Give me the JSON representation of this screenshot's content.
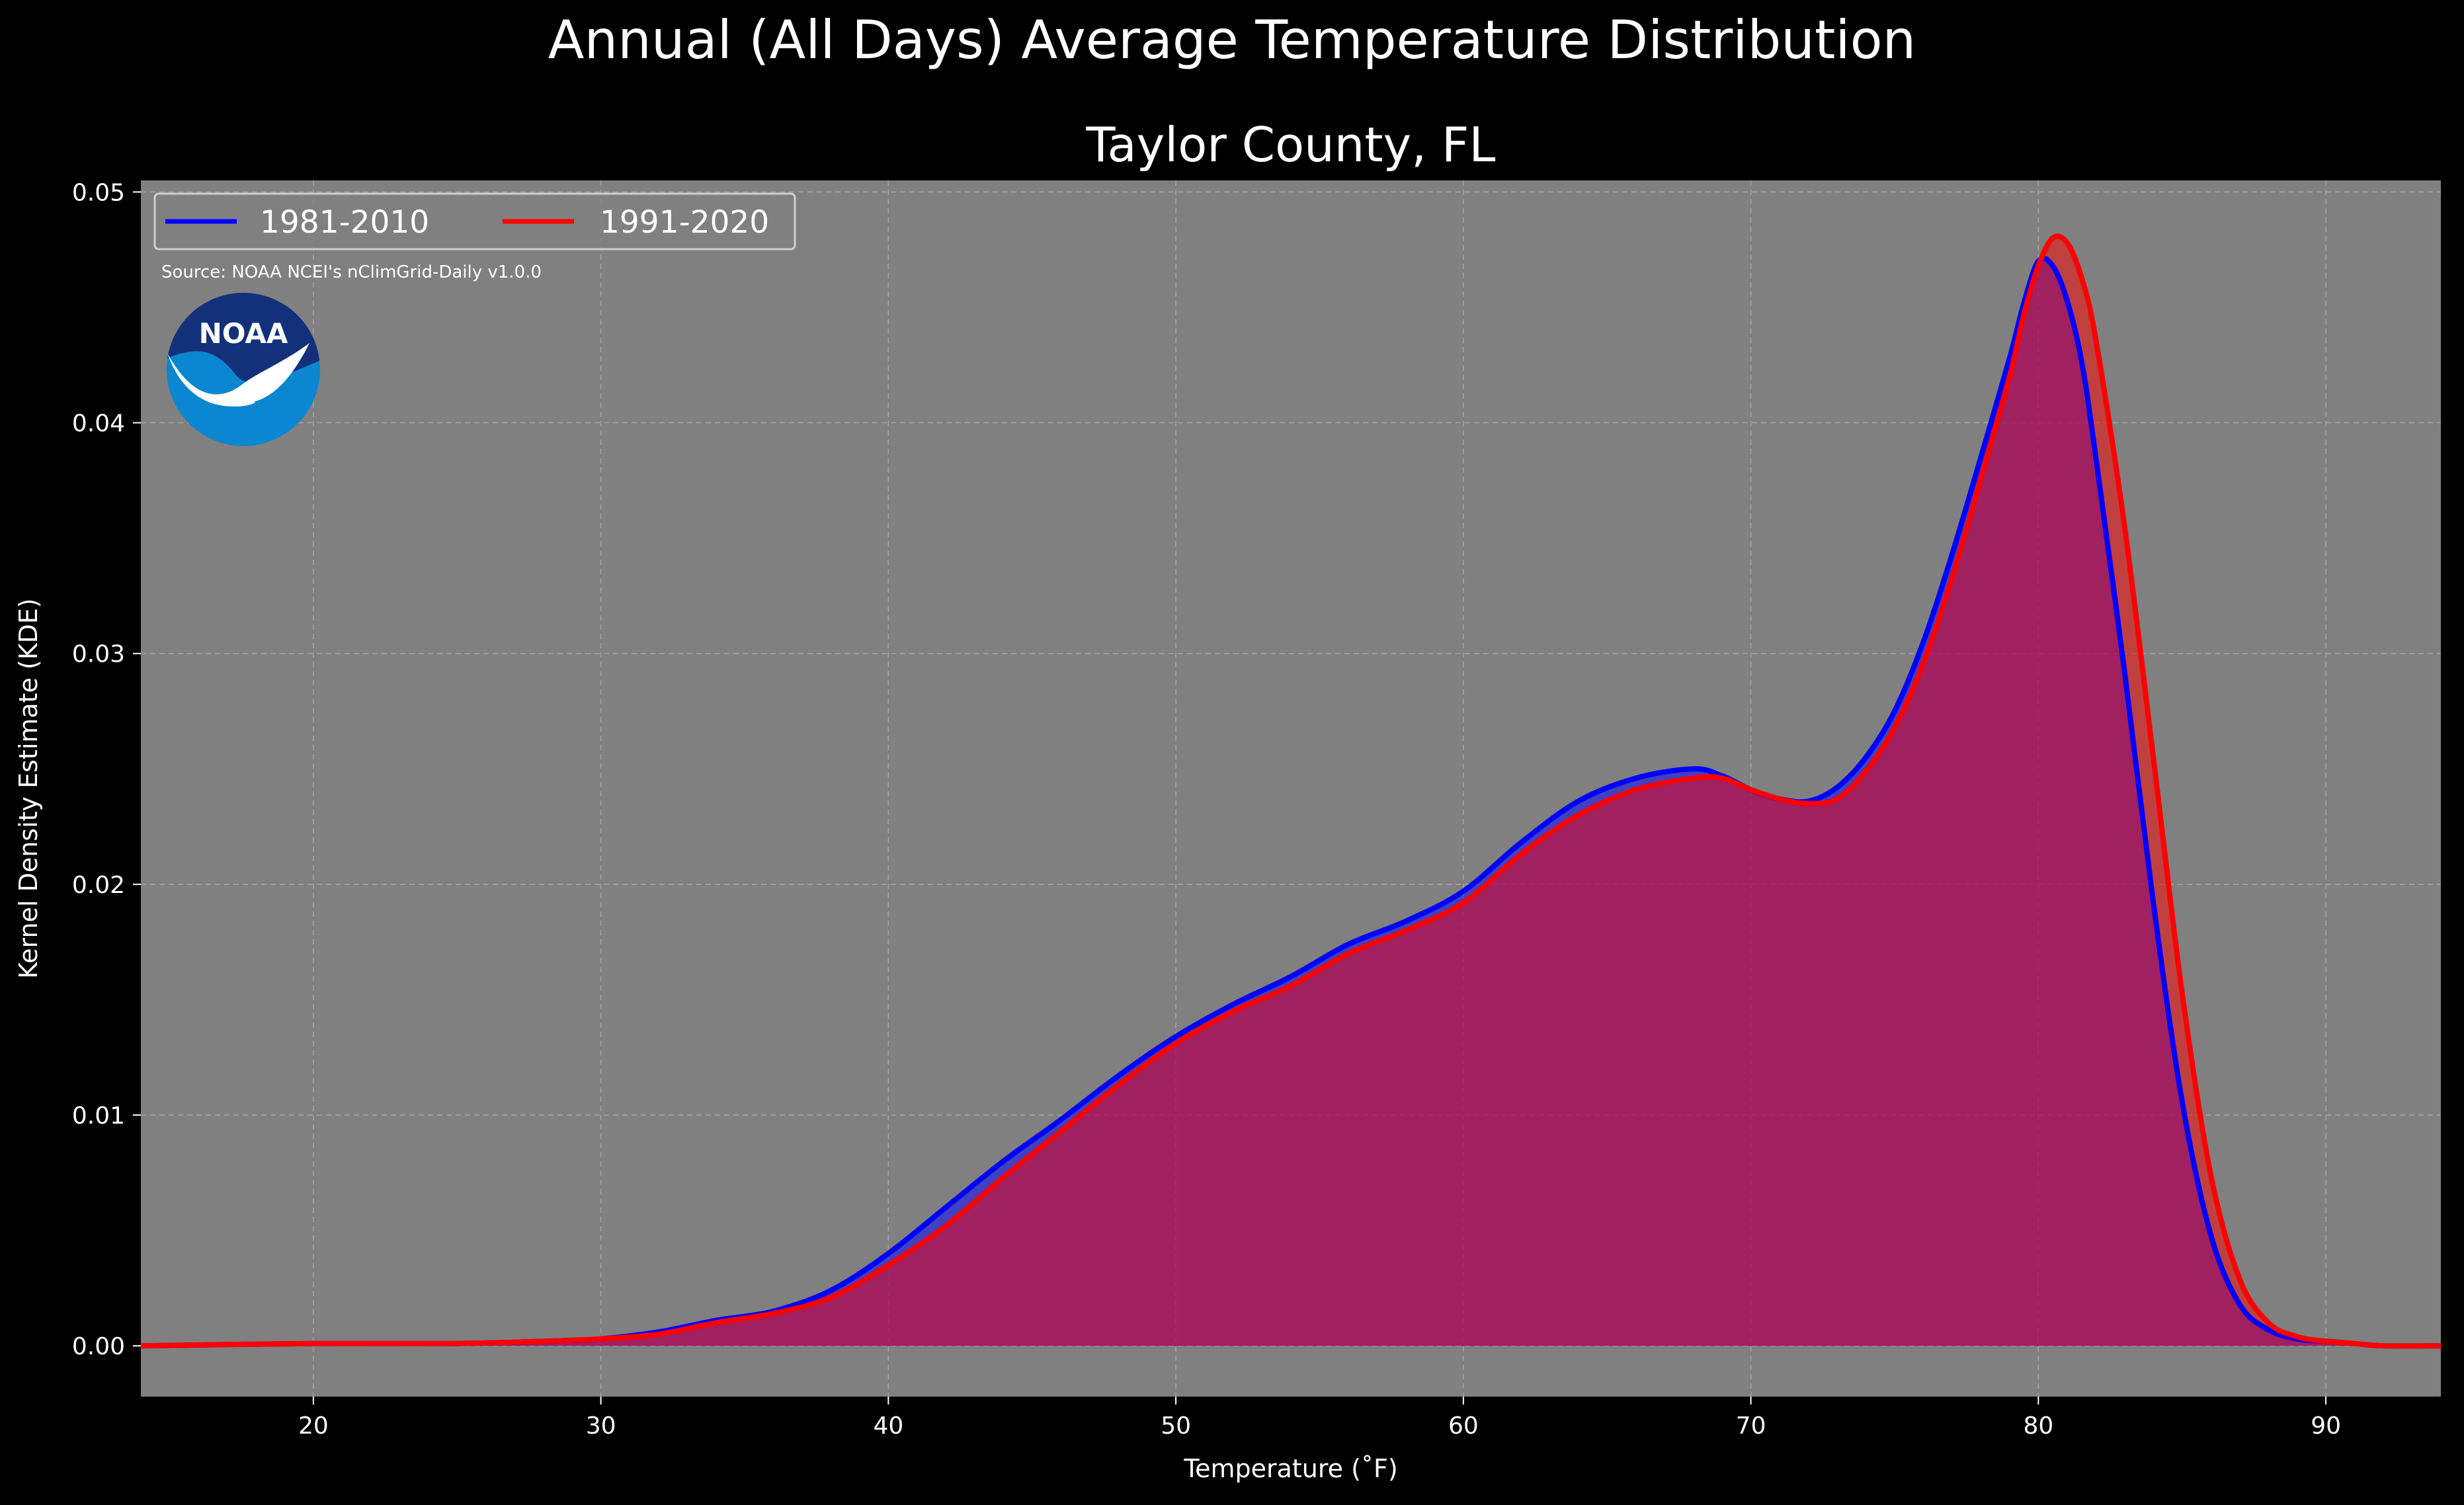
{
  "chart_data": {
    "type": "area",
    "title": "Annual (All Days) Average Temperature Distribution",
    "subtitle": "Taylor County, FL",
    "xlabel": "Temperature (˚F)",
    "ylabel": "Kernel Density Estimate (KDE)",
    "xlim": [
      14,
      94
    ],
    "ylim": [
      -0.0022,
      0.0505
    ],
    "x_ticks": [
      20,
      30,
      40,
      50,
      60,
      70,
      80,
      90
    ],
    "y_ticks": [
      0.0,
      0.01,
      0.02,
      0.03,
      0.04,
      0.05
    ],
    "x_tick_labels": [
      "20",
      "30",
      "40",
      "50",
      "60",
      "70",
      "80",
      "90"
    ],
    "y_tick_labels": [
      "0.00",
      "0.01",
      "0.02",
      "0.03",
      "0.04",
      "0.05"
    ],
    "grid": true,
    "legend_position": "top-left",
    "background_color": "#808080",
    "figure_color": "#000000",
    "source_note": "Source: NOAA NCEI's nClimGrid-Daily v1.0.0",
    "logo_text": "NOAA",
    "series": [
      {
        "name": "1981-2010",
        "color": "#0000ff",
        "fill_color": "#0000ff",
        "x": [
          14,
          20,
          25,
          28,
          30,
          32,
          34,
          36,
          38,
          40,
          42,
          44,
          46,
          48,
          50,
          52,
          54,
          56,
          58,
          60,
          62,
          64,
          66,
          68,
          69,
          70,
          71,
          72,
          73,
          74,
          75,
          76,
          77,
          78,
          79,
          79.5,
          80,
          80.5,
          81,
          81.5,
          82,
          83,
          84,
          85,
          86,
          87,
          88,
          89,
          90,
          91,
          92,
          94
        ],
        "y": [
          0,
          0.0001,
          0.0001,
          0.0002,
          0.0003,
          0.0006,
          0.0011,
          0.0015,
          0.0024,
          0.004,
          0.006,
          0.008,
          0.0098,
          0.0117,
          0.0134,
          0.0148,
          0.016,
          0.0174,
          0.0184,
          0.0197,
          0.0218,
          0.0236,
          0.0246,
          0.025,
          0.0247,
          0.0241,
          0.0237,
          0.0236,
          0.0242,
          0.0255,
          0.0275,
          0.0305,
          0.0343,
          0.0385,
          0.0428,
          0.0452,
          0.047,
          0.0468,
          0.0453,
          0.0427,
          0.0385,
          0.0292,
          0.0192,
          0.0106,
          0.0048,
          0.0018,
          0.0007,
          0.0003,
          0.0002,
          0.0001,
          0,
          0
        ]
      },
      {
        "name": "1991-2020",
        "color": "#ff0000",
        "fill_color": "#ff0000",
        "x": [
          14,
          20,
          25,
          28,
          30,
          32,
          34,
          36,
          38,
          40,
          42,
          44,
          46,
          48,
          50,
          52,
          54,
          56,
          58,
          60,
          62,
          64,
          66,
          68,
          69,
          70,
          71,
          72,
          73,
          74,
          75,
          76,
          77,
          78,
          79,
          79.5,
          80,
          80.5,
          81,
          81.5,
          82,
          83,
          84,
          85,
          86,
          87,
          88,
          89,
          90,
          91,
          92,
          94
        ],
        "y": [
          0,
          0.0001,
          0.0001,
          0.0002,
          0.0003,
          0.0005,
          0.001,
          0.0014,
          0.0021,
          0.0035,
          0.0052,
          0.0073,
          0.0093,
          0.0113,
          0.0131,
          0.0145,
          0.0156,
          0.017,
          0.018,
          0.0192,
          0.0213,
          0.023,
          0.0241,
          0.0246,
          0.0246,
          0.0241,
          0.0237,
          0.0235,
          0.0237,
          0.0249,
          0.0268,
          0.0296,
          0.0333,
          0.0376,
          0.042,
          0.0447,
          0.0468,
          0.048,
          0.0478,
          0.0463,
          0.0436,
          0.0355,
          0.0255,
          0.0153,
          0.0074,
          0.0029,
          0.001,
          0.0004,
          0.0002,
          0.0001,
          0,
          0
        ]
      }
    ]
  }
}
